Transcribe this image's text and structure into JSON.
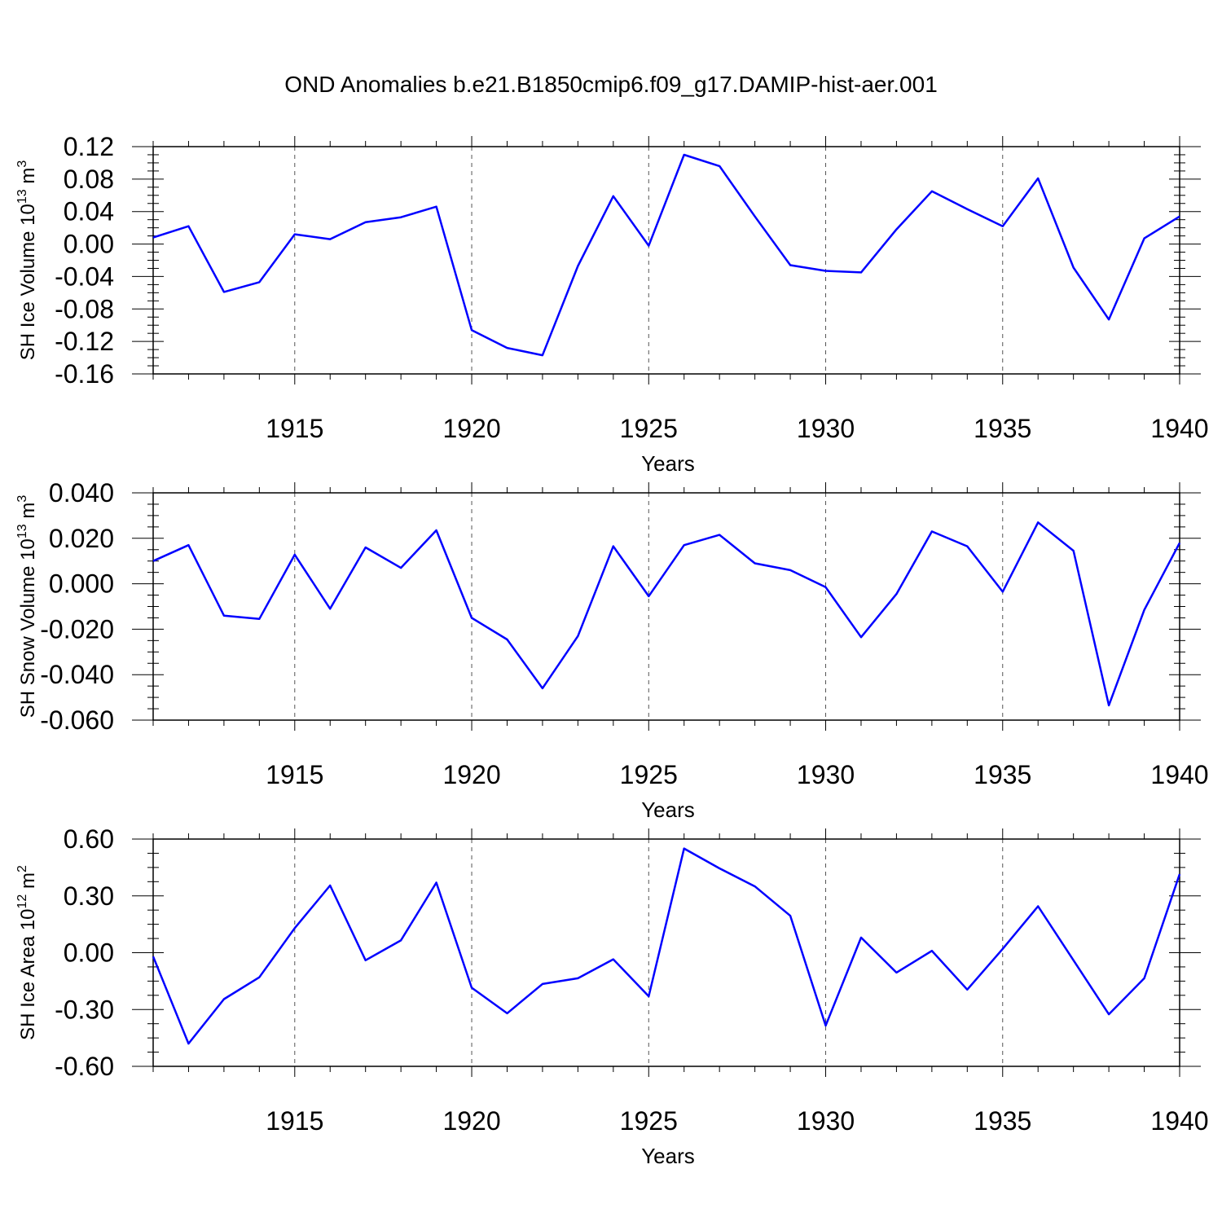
{
  "figure": {
    "title": "OND Anomalies b.e21.B1850cmip6.f09_g17.DAMIP-hist-aer.001"
  },
  "chart_data": [
    {
      "type": "line",
      "title": "OND Anomalies b.e21.B1850cmip6.f09_g17.DAMIP-hist-aer.001",
      "xlabel": "Years",
      "ylabel": {
        "text": "SH Ice Volume 10",
        "sup": "13",
        "suffix": " m",
        "sup2": "3"
      },
      "xlim": [
        1911,
        1940
      ],
      "ylim": [
        -0.16,
        0.12
      ],
      "yticks": [
        -0.16,
        -0.12,
        -0.08,
        -0.04,
        0.0,
        0.04,
        0.08,
        0.12
      ],
      "ytick_labels": [
        "-0.16",
        "-0.12",
        "-0.08",
        "-0.04",
        "0.00",
        "0.04",
        "0.08",
        "0.12"
      ],
      "xticks": [
        1915,
        1920,
        1925,
        1930,
        1935,
        1940
      ],
      "xtick_labels": [
        "1915",
        "1920",
        "1925",
        "1930",
        "1935",
        "1940"
      ],
      "grid": "vertical dashed at major x ticks",
      "color": "#0000ff",
      "x": [
        1911,
        1912,
        1913,
        1914,
        1915,
        1916,
        1917,
        1918,
        1919,
        1920,
        1921,
        1922,
        1923,
        1924,
        1925,
        1926,
        1927,
        1928,
        1929,
        1930,
        1931,
        1932,
        1933,
        1934,
        1935,
        1936,
        1937,
        1938,
        1939,
        1940
      ],
      "values": [
        0.008,
        0.022,
        -0.059,
        -0.047,
        0.012,
        0.006,
        0.027,
        0.033,
        0.046,
        -0.106,
        -0.128,
        -0.137,
        -0.027,
        0.059,
        -0.002,
        0.11,
        0.096,
        0.034,
        -0.026,
        -0.033,
        -0.035,
        0.018,
        0.065,
        0.043,
        0.022,
        0.081,
        -0.029,
        -0.093,
        0.007,
        0.034
      ]
    },
    {
      "type": "line",
      "xlabel": "Years",
      "ylabel": {
        "text": "SH Snow Volume 10",
        "sup": "13",
        "suffix": " m",
        "sup2": "3"
      },
      "xlim": [
        1911,
        1940
      ],
      "ylim": [
        -0.06,
        0.04
      ],
      "yticks": [
        -0.06,
        -0.04,
        -0.02,
        0.0,
        0.02,
        0.04
      ],
      "ytick_labels": [
        "-0.060",
        "-0.040",
        "-0.020",
        "0.000",
        "0.020",
        "0.040"
      ],
      "xticks": [
        1915,
        1920,
        1925,
        1930,
        1935,
        1940
      ],
      "xtick_labels": [
        "1915",
        "1920",
        "1925",
        "1930",
        "1935",
        "1940"
      ],
      "grid": "vertical dashed at major x ticks",
      "color": "#0000ff",
      "x": [
        1911,
        1912,
        1913,
        1914,
        1915,
        1916,
        1917,
        1918,
        1919,
        1920,
        1921,
        1922,
        1923,
        1924,
        1925,
        1926,
        1927,
        1928,
        1929,
        1930,
        1931,
        1932,
        1933,
        1934,
        1935,
        1936,
        1937,
        1938,
        1939,
        1940
      ],
      "values": [
        0.01,
        0.017,
        -0.014,
        -0.0155,
        0.0128,
        -0.011,
        0.016,
        0.007,
        0.0235,
        -0.015,
        -0.0245,
        -0.046,
        -0.023,
        0.0165,
        -0.0055,
        0.017,
        0.0215,
        0.009,
        0.006,
        -0.0015,
        -0.0235,
        -0.0045,
        0.023,
        0.0165,
        -0.0035,
        0.027,
        0.0145,
        -0.0535,
        -0.0115,
        0.018
      ]
    },
    {
      "type": "line",
      "xlabel": "Years",
      "ylabel": {
        "text": "SH Ice Area 10",
        "sup": "12",
        "suffix": " m",
        "sup2": "2"
      },
      "xlim": [
        1911,
        1940
      ],
      "ylim": [
        -0.6,
        0.6
      ],
      "yticks": [
        -0.6,
        -0.3,
        0.0,
        0.3,
        0.6
      ],
      "ytick_labels": [
        "-0.60",
        "-0.30",
        "0.00",
        "0.30",
        "0.60"
      ],
      "xticks": [
        1915,
        1920,
        1925,
        1930,
        1935,
        1940
      ],
      "xtick_labels": [
        "1915",
        "1920",
        "1925",
        "1930",
        "1935",
        "1940"
      ],
      "grid": "vertical dashed at major x ticks",
      "color": "#0000ff",
      "x": [
        1911,
        1912,
        1913,
        1914,
        1915,
        1916,
        1917,
        1918,
        1919,
        1920,
        1921,
        1922,
        1923,
        1924,
        1925,
        1926,
        1927,
        1928,
        1929,
        1930,
        1931,
        1932,
        1933,
        1934,
        1935,
        1936,
        1937,
        1938,
        1939,
        1940
      ],
      "values": [
        -0.02,
        -0.48,
        -0.245,
        -0.13,
        0.13,
        0.355,
        -0.04,
        0.065,
        0.37,
        -0.185,
        -0.32,
        -0.165,
        -0.135,
        -0.035,
        -0.23,
        0.55,
        0.445,
        0.35,
        0.195,
        -0.385,
        0.08,
        -0.105,
        0.01,
        -0.195,
        0.02,
        0.245,
        -0.04,
        -0.325,
        -0.135,
        0.415
      ]
    }
  ]
}
